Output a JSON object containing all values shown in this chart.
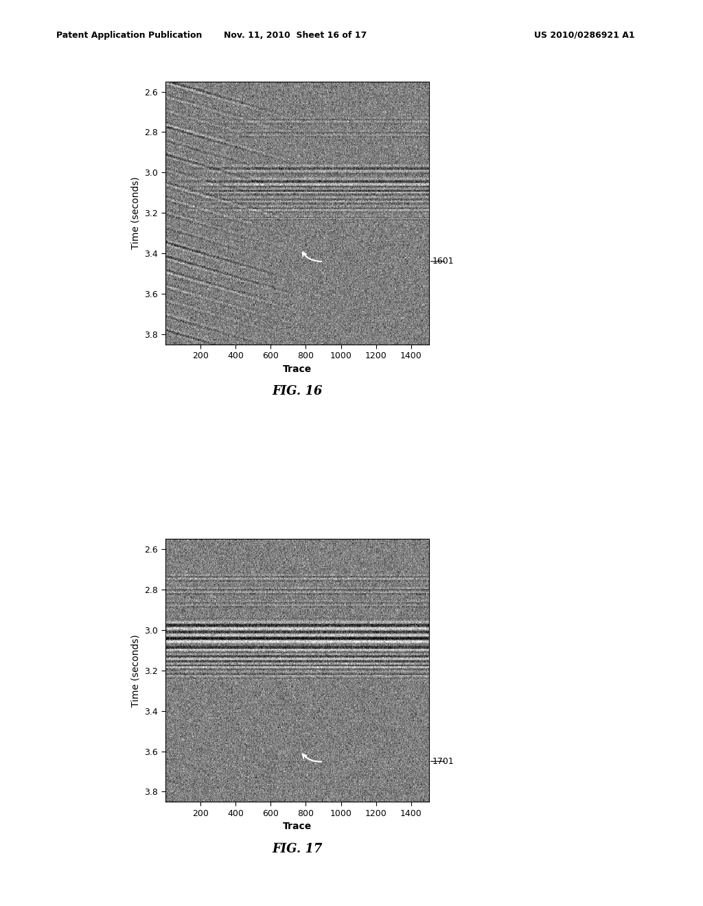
{
  "header_text_left": "Patent Application Publication",
  "header_text_mid": "Nov. 11, 2010  Sheet 16 of 17",
  "header_text_right": "US 2010/0286921 A1",
  "fig1_label": "FIG. 16",
  "fig2_label": "FIG. 17",
  "annotation1": "1601",
  "annotation2": "1701",
  "ylabel": "Time (seconds)",
  "xlabel": "Trace",
  "yticks": [
    2.6,
    2.8,
    3.0,
    3.2,
    3.4,
    3.6,
    3.8
  ],
  "xticks": [
    200,
    400,
    600,
    800,
    1000,
    1200,
    1400
  ],
  "xlim": [
    0,
    1500
  ],
  "ylim": [
    3.85,
    2.55
  ],
  "background_color": "#ffffff",
  "num_traces": 400,
  "num_time_samples": 300,
  "seed1": 42,
  "seed2": 99
}
